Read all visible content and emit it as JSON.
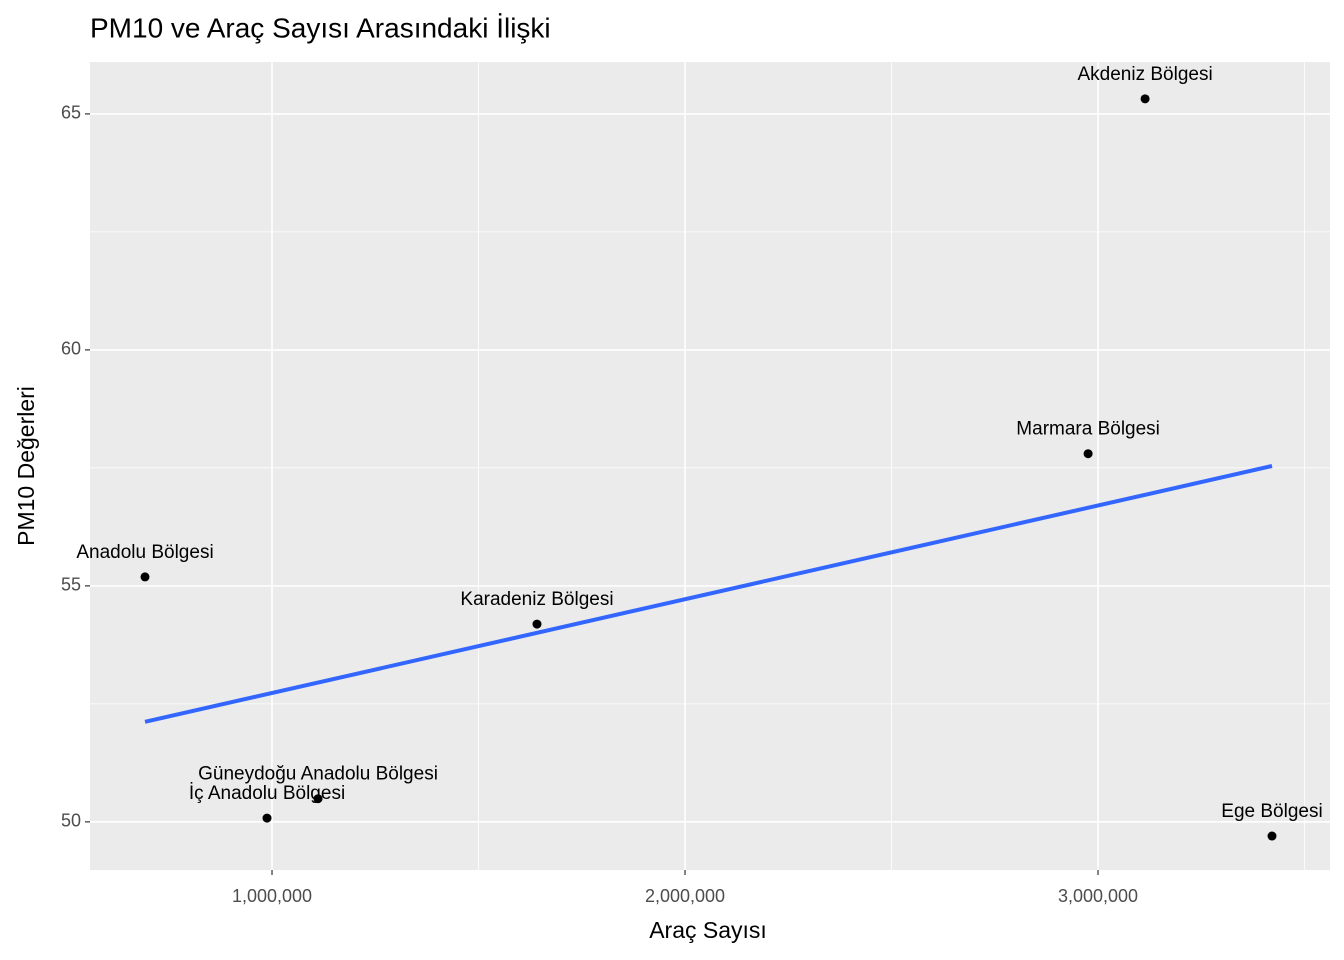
{
  "chart_data": {
    "type": "scatter",
    "title": "PM10 ve Araç Sayısı Arasındaki İlişki",
    "x_label": "Araç Sayısı",
    "y_label": "PM10 Değerleri",
    "labels": [
      "Akdeniz Bölgesi",
      "Marmara Bölgesi",
      "Anadolu Bölgesi",
      "Karadeniz Bölgesi",
      "Güneydoğu Anadolu Bölgesi",
      "İç Anadolu Bölgesi",
      "Ege Bölgesi"
    ],
    "x": [
      3114000,
      2976000,
      692500,
      1641600,
      1111400,
      987900,
      3421300
    ],
    "y": [
      65.32,
      57.8,
      55.19,
      54.19,
      50.49,
      50.08,
      49.7
    ],
    "color": "#000000",
    "regression_line": {
      "color": "#3366FF",
      "x": [
        692500,
        3421300
      ],
      "y": [
        52.12,
        57.54
      ]
    },
    "xlim": [
      559300,
      3561700
    ],
    "ylim": [
      48.98,
      66.1
    ],
    "xticks": [
      {
        "value": 1000000,
        "label": "1,000,000"
      },
      {
        "value": 2000000,
        "label": "2,000,000"
      },
      {
        "value": 3000000,
        "label": "3,000,000"
      }
    ],
    "yticks": [
      50,
      55,
      60,
      65
    ],
    "x_minor_grid": [
      1500000,
      2500000,
      3500000
    ],
    "y_minor_grid": [
      52.5,
      57.5,
      62.5
    ],
    "grid": true
  }
}
